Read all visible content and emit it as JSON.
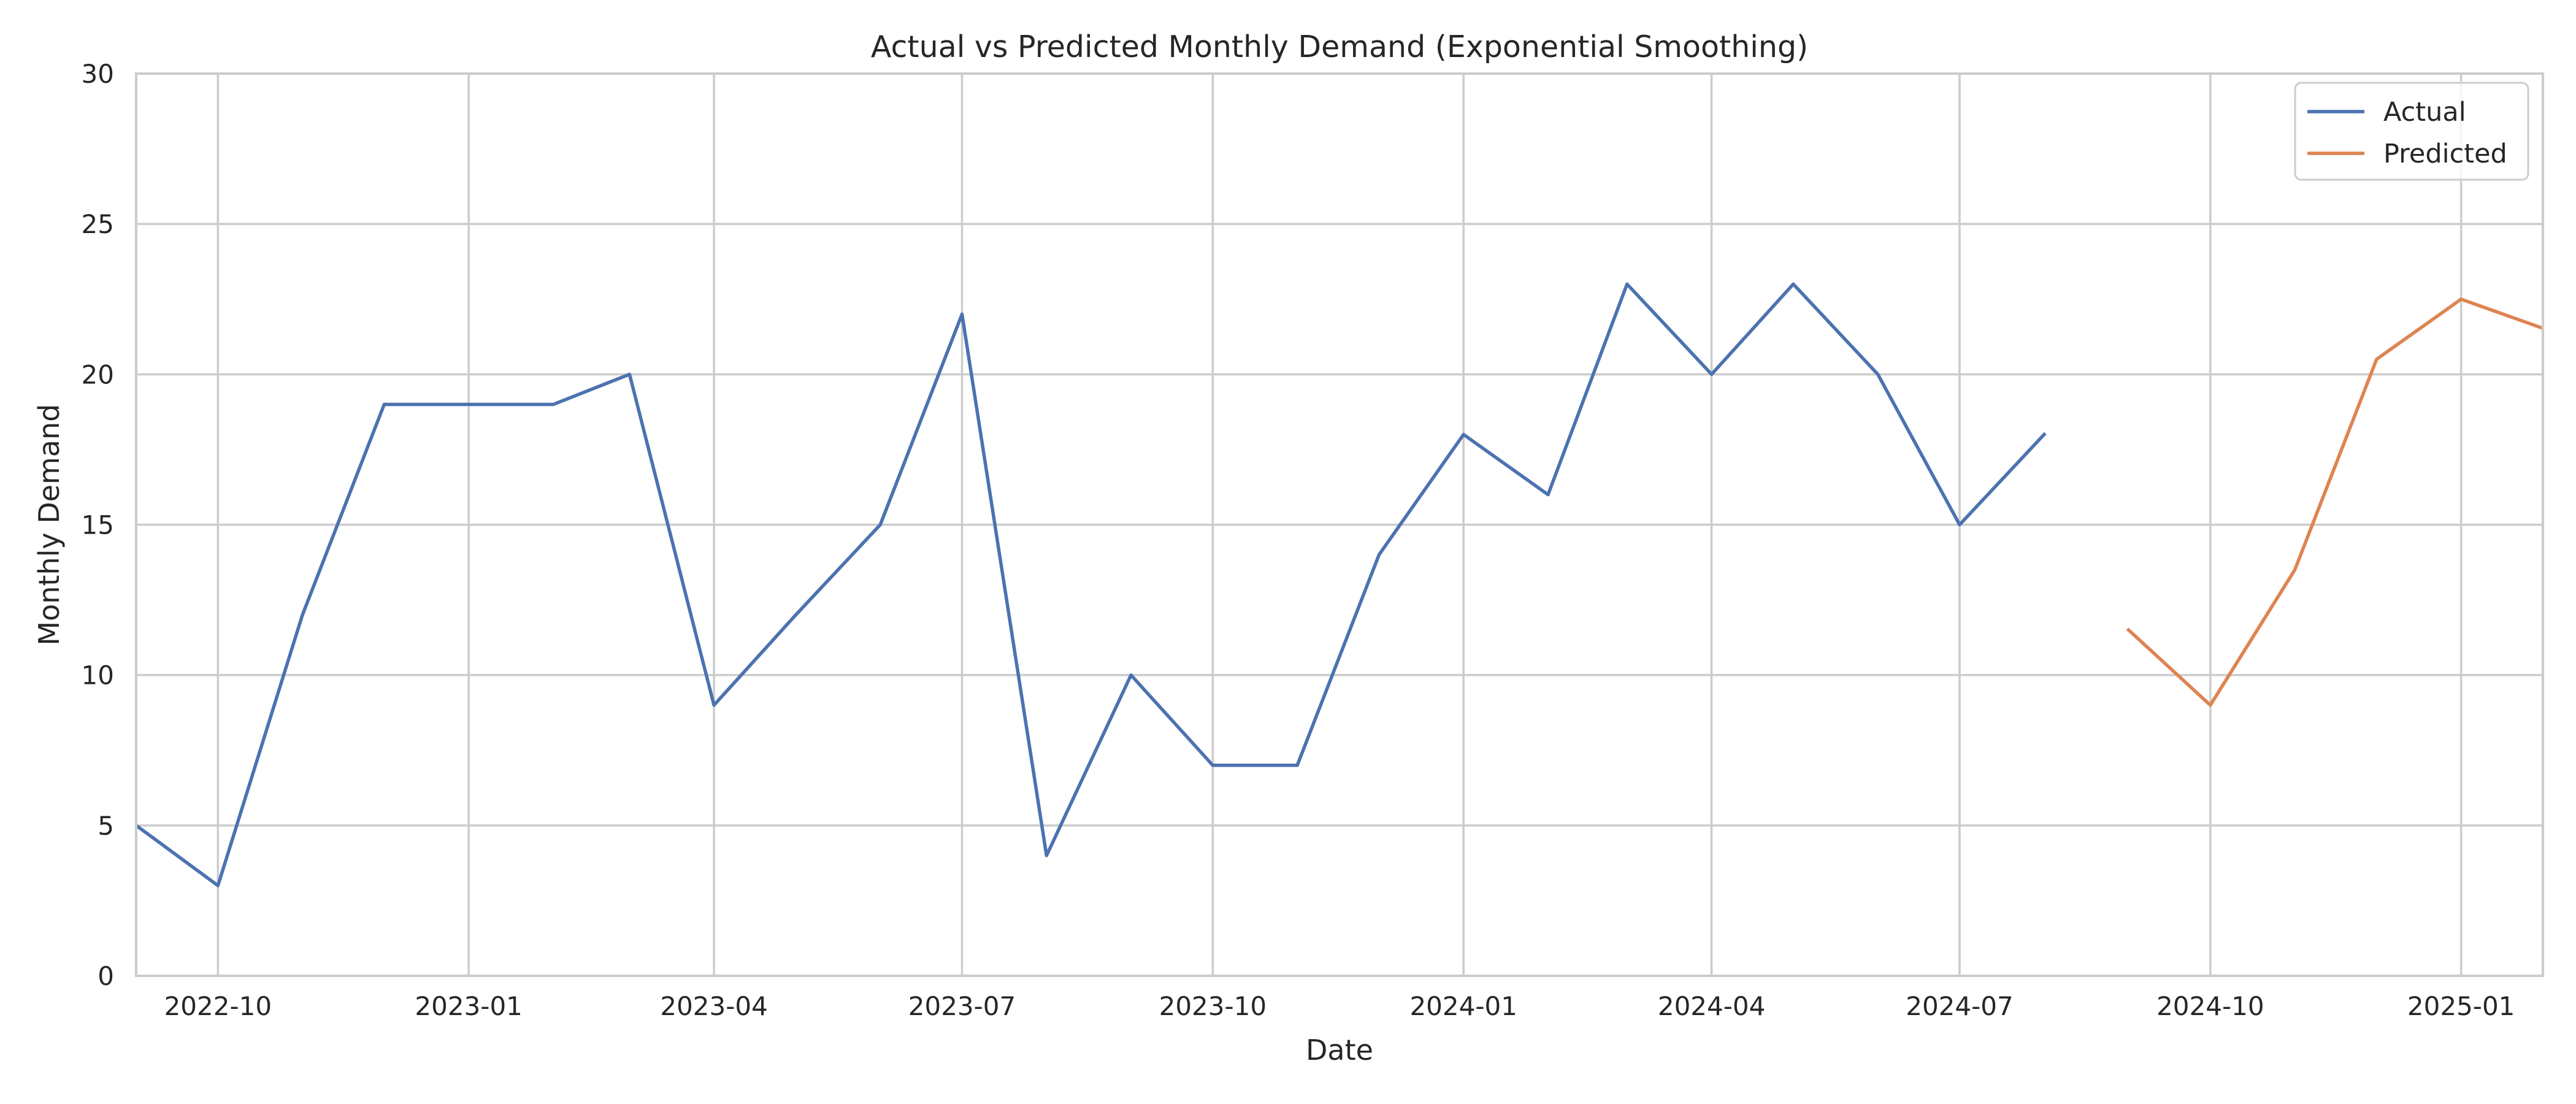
{
  "chart_data": {
    "type": "line",
    "title": "Actual vs Predicted Monthly Demand (Exponential Smoothing)",
    "xlabel": "Date",
    "ylabel": "Monthly Demand",
    "xlim": [
      "2022-09-01",
      "2025-01-31"
    ],
    "ylim": [
      0,
      30
    ],
    "x_ticks": [
      "2022-10-01",
      "2023-01-01",
      "2023-04-01",
      "2023-07-01",
      "2023-10-01",
      "2024-01-01",
      "2024-04-01",
      "2024-07-01",
      "2024-10-01",
      "2025-01-01"
    ],
    "x_tick_labels": [
      "2022-10",
      "2023-01",
      "2023-04",
      "2023-07",
      "2023-10",
      "2024-01",
      "2024-04",
      "2024-07",
      "2024-10",
      "2025-01"
    ],
    "y_ticks": [
      0,
      5,
      10,
      15,
      20,
      25,
      30
    ],
    "grid": true,
    "legend_position": "top-right",
    "series": [
      {
        "name": "Actual",
        "color": "#4c72b0",
        "x": [
          "2022-09-01",
          "2022-10-01",
          "2022-11-01",
          "2022-12-01",
          "2023-01-01",
          "2023-02-01",
          "2023-03-01",
          "2023-04-01",
          "2023-05-01",
          "2023-06-01",
          "2023-07-01",
          "2023-08-01",
          "2023-09-01",
          "2023-10-01",
          "2023-11-01",
          "2023-12-01",
          "2024-01-01",
          "2024-02-01",
          "2024-03-01",
          "2024-04-01",
          "2024-05-01",
          "2024-06-01",
          "2024-07-01",
          "2024-08-01"
        ],
        "y": [
          5,
          3,
          12,
          19,
          19,
          19,
          20,
          9,
          12,
          15,
          22,
          4,
          10,
          7,
          7,
          14,
          18,
          16,
          23,
          20,
          23,
          20,
          15,
          18
        ]
      },
      {
        "name": "Predicted",
        "color": "#dd8452",
        "x": [
          "2024-09-01",
          "2024-10-01",
          "2024-11-01",
          "2024-12-01",
          "2025-01-01",
          "2025-02-01"
        ],
        "y": [
          11.5,
          9,
          13.5,
          20.5,
          22.5,
          21.5
        ]
      }
    ]
  }
}
